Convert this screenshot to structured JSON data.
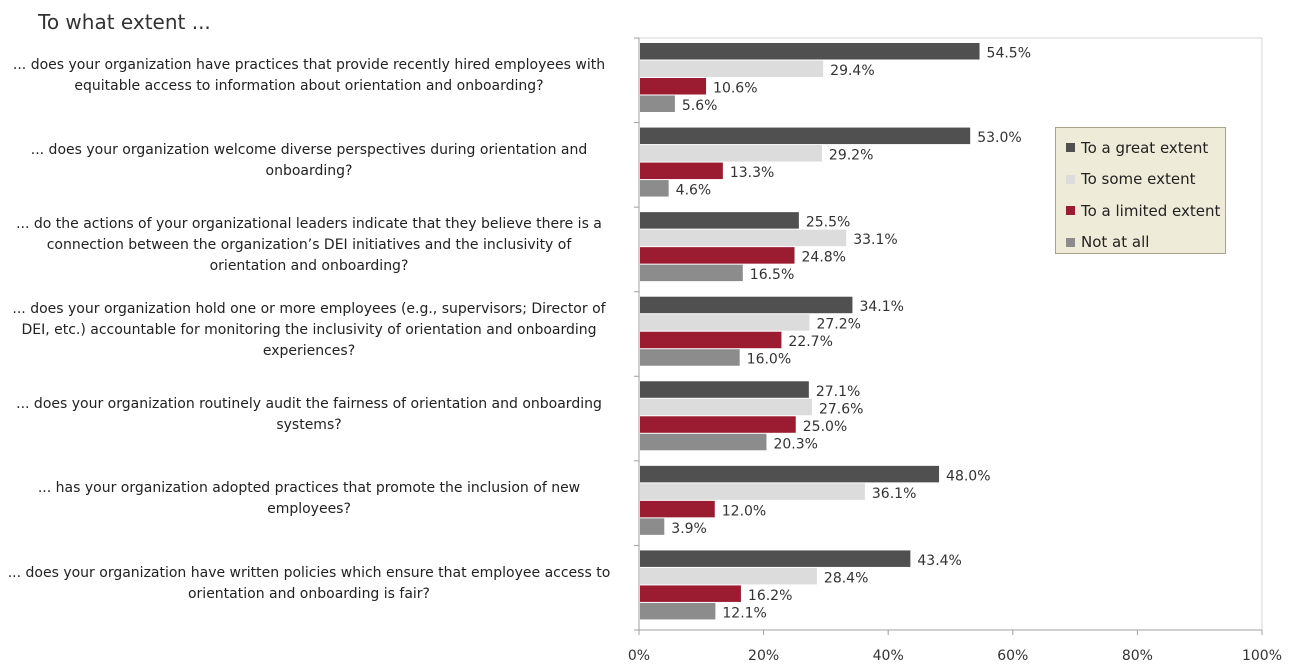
{
  "chart_data": {
    "type": "bar",
    "orientation": "horizontal",
    "title": "To what extent ...",
    "categories": [
      "... does your organization have practices that provide recently hired employees with equitable access to information about orientation and onboarding?",
      "... does your organization welcome diverse perspectives during orientation and onboarding?",
      "... do the actions of your organizational leaders indicate that they believe there is a connection between the organization’s DEI initiatives and the inclusivity of orientation and onboarding?",
      "... does your organization hold one or more employees (e.g., supervisors; Director of DEI, etc.) accountable for monitoring the inclusivity of orientation and onboarding experiences?",
      "... does your organization routinely audit the fairness of orientation and onboarding systems?",
      "... has your organization adopted practices that promote the inclusion of new employees?",
      "... does your organization have written policies which ensure that employee access to orientation and onboarding is fair?"
    ],
    "category_lines": [
      [
        "... does your organization have practices that provide recently hired employees with",
        "equitable access to information about orientation and onboarding?"
      ],
      [
        "... does your organization welcome diverse perspectives during orientation and",
        "onboarding?"
      ],
      [
        "... do the actions of your organizational leaders indicate that they believe there is a",
        "connection between the organization’s DEI initiatives and the inclusivity of",
        "orientation and onboarding?"
      ],
      [
        "... does your organization hold one or more employees (e.g., supervisors; Director of",
        "DEI, etc.) accountable for monitoring the inclusivity of orientation and onboarding",
        "experiences?"
      ],
      [
        "... does your organization routinely audit the fairness of orientation and onboarding",
        "systems?"
      ],
      [
        "... has your organization adopted practices that promote the inclusion of new",
        "employees?"
      ],
      [
        "... does your organization have written policies which ensure that employee access to",
        "orientation and onboarding is fair?"
      ]
    ],
    "series": [
      {
        "name": "To a great extent",
        "color": "#505050",
        "values": [
          54.5,
          53.0,
          25.5,
          34.1,
          27.1,
          48.0,
          43.4
        ]
      },
      {
        "name": "To some extent",
        "color": "#dcdcdc",
        "values": [
          29.4,
          29.2,
          33.1,
          27.2,
          27.6,
          36.1,
          28.4
        ]
      },
      {
        "name": "To a limited extent",
        "color": "#9b1b30",
        "values": [
          10.6,
          13.3,
          24.8,
          22.7,
          25.0,
          12.0,
          16.2
        ]
      },
      {
        "name": "Not at all",
        "color": "#8c8c8c",
        "values": [
          5.6,
          4.6,
          16.5,
          16.0,
          20.3,
          3.9,
          12.1
        ]
      }
    ],
    "xlim": [
      0,
      100
    ],
    "xticks": [
      "0%",
      "20%",
      "40%",
      "60%",
      "80%",
      "100%"
    ],
    "value_suffix": "%",
    "grid": false,
    "legend_position": "right"
  }
}
